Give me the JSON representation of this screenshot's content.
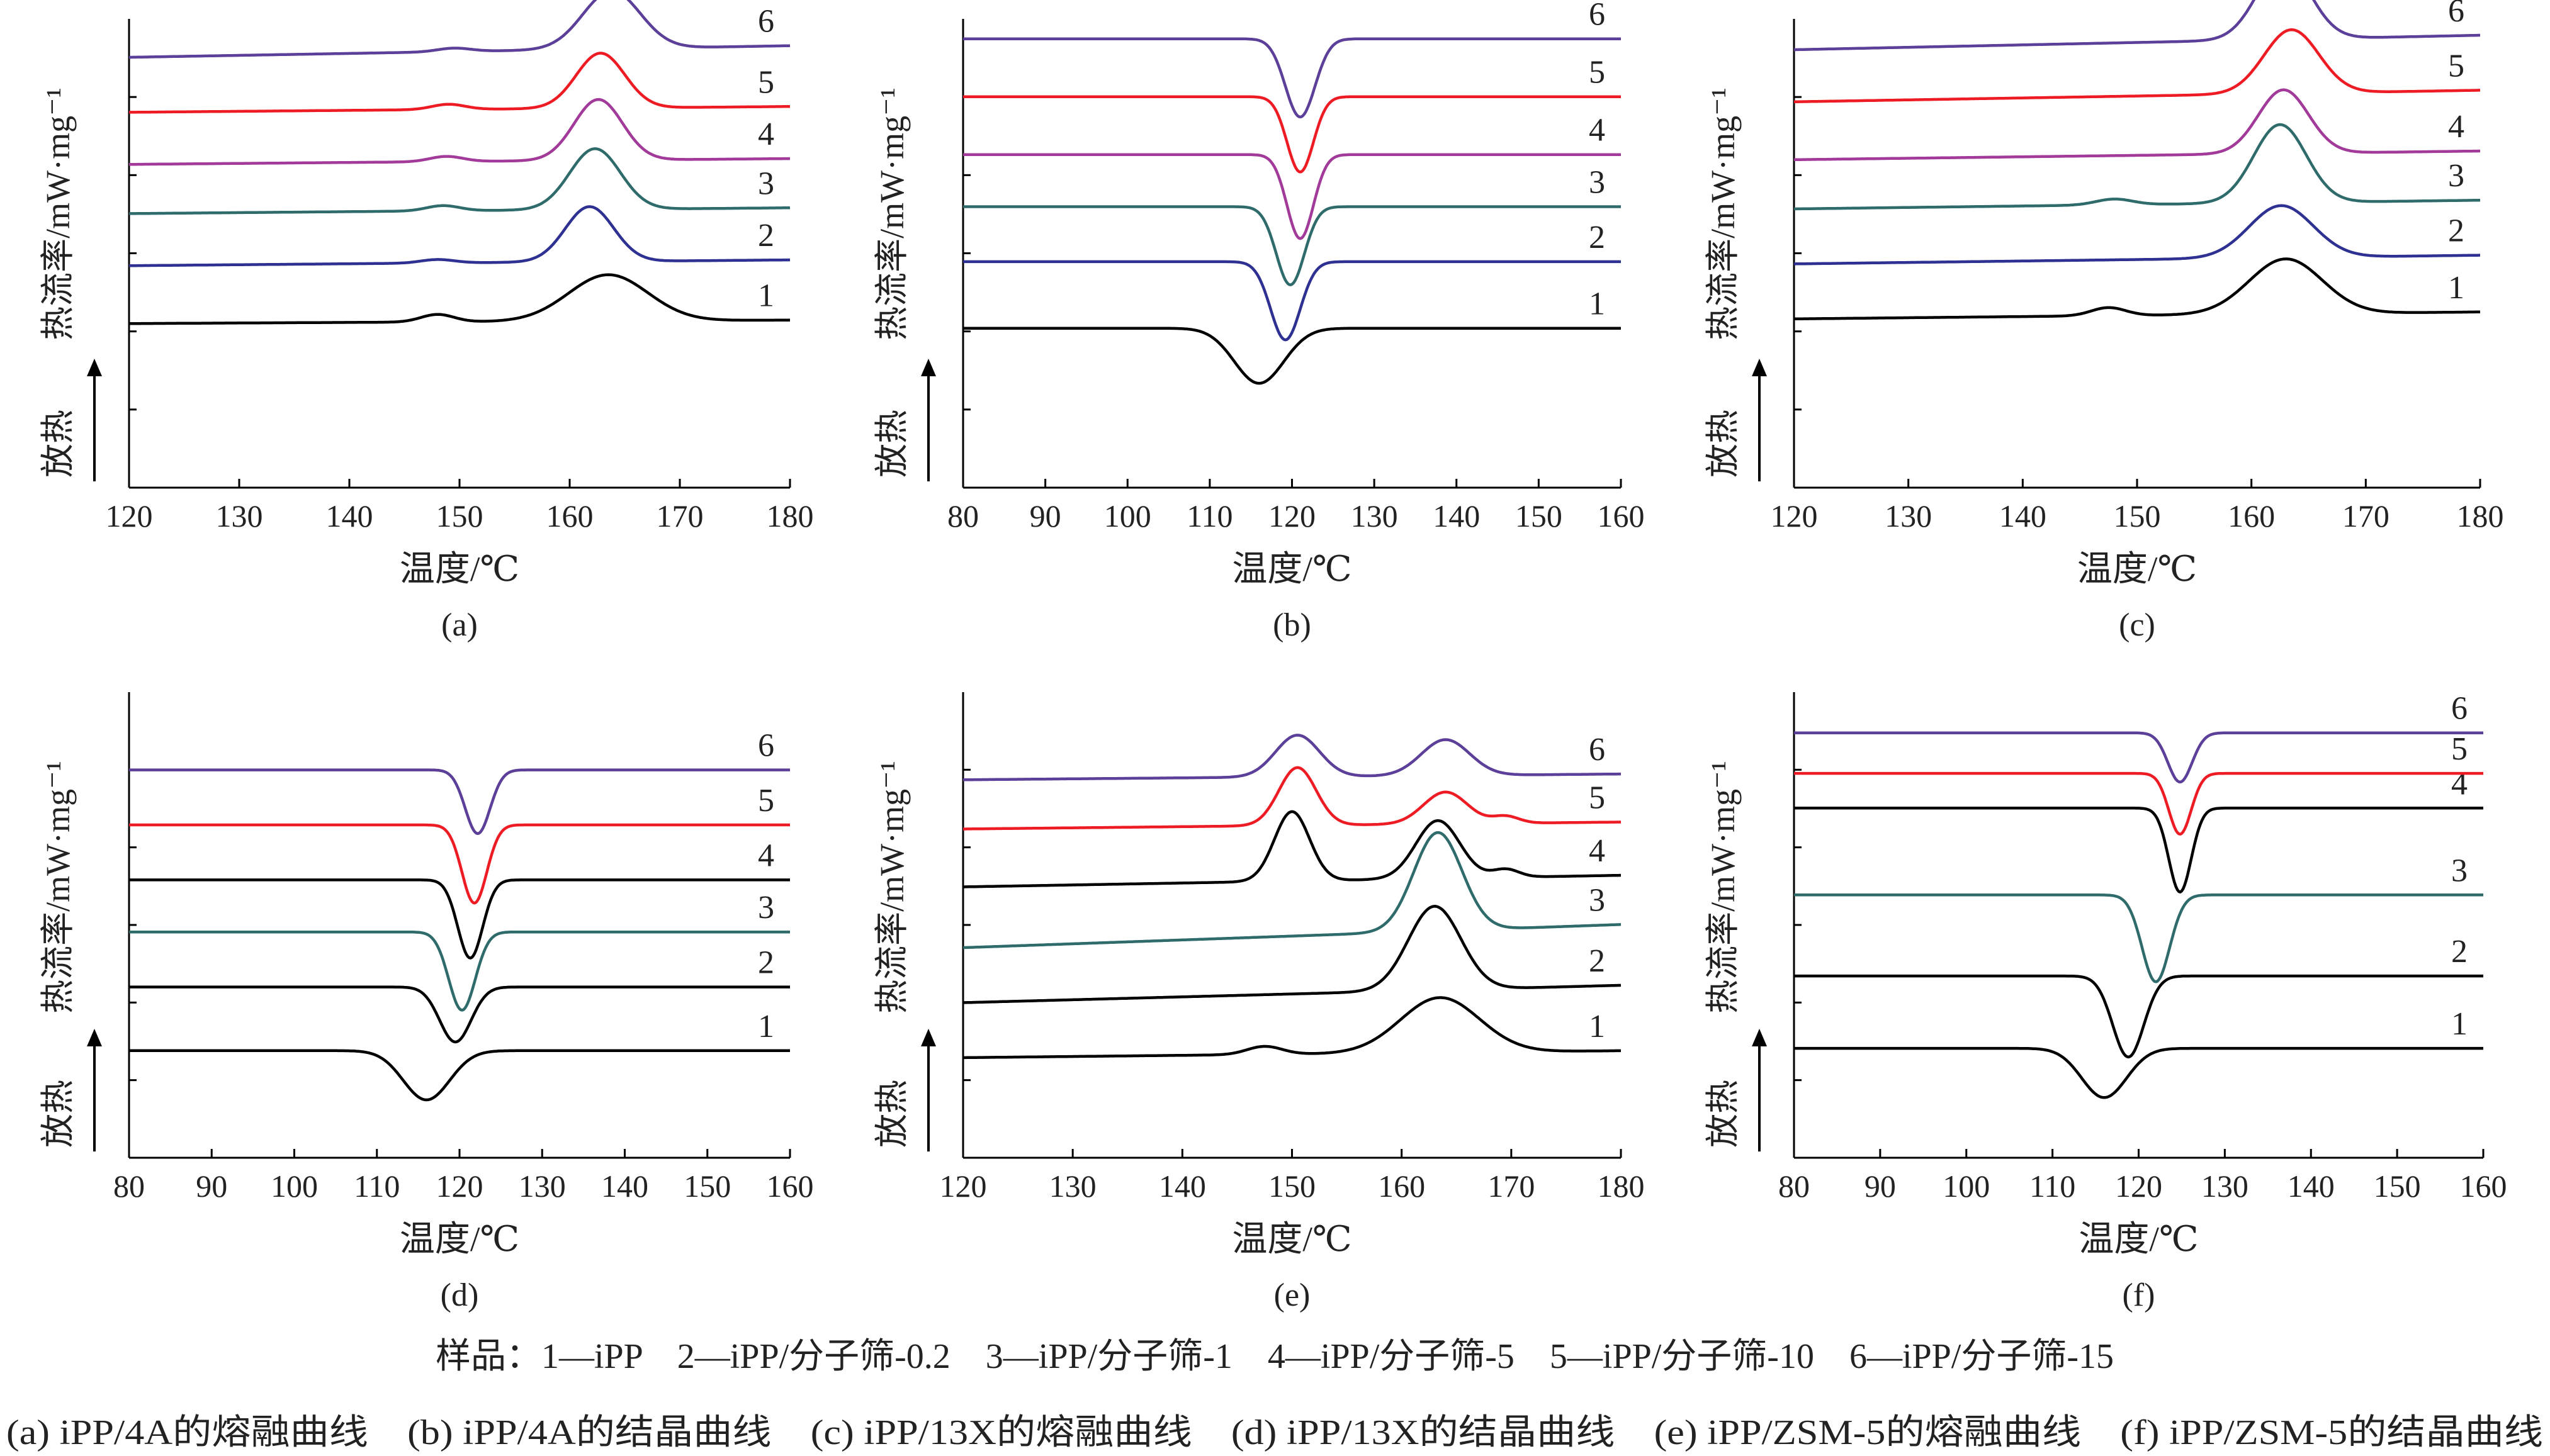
{
  "figure": {
    "sample_legend": "样品：1—iPP　2—iPP/分子筛-0.2　3—iPP/分子筛-1　4—iPP/分子筛-5　5—iPP/分子筛-10　6—iPP/分子筛-15",
    "caption": "(a) iPP/4A的熔融曲线　(b) iPP/4A的结晶曲线　(c) iPP/13X的熔融曲线　(d) iPP/13X的结晶曲线　(e) iPP/ZSM-5的熔融曲线　(f) iPP/ZSM-5的结晶曲线"
  },
  "chart_data": [
    {
      "panel": "(a)",
      "type": "line",
      "curve": "melting",
      "xlabel": "温度/℃",
      "ylabel": "热流率/mW·mg⁻¹",
      "direction_label": "放热",
      "xlim": [
        120,
        180
      ],
      "xticks": [
        120,
        130,
        140,
        150,
        160,
        170,
        180
      ],
      "series": [
        {
          "name": "1",
          "color": "#000000",
          "baseline": 0.0,
          "slope": 0.06,
          "peaks": [
            {
              "type": "up",
              "t": 163.5,
              "h": 0.8,
              "w": 3.6
            },
            {
              "type": "up",
              "t": 148.0,
              "h": 0.13,
              "w": 1.5
            }
          ]
        },
        {
          "name": "2",
          "color": "#2E3192",
          "baseline": 1.0,
          "slope": 0.1,
          "peaks": [
            {
              "type": "up",
              "t": 161.8,
              "h": 0.95,
              "w": 2.2
            },
            {
              "type": "up",
              "t": 148.0,
              "h": 0.06,
              "w": 1.5
            }
          ]
        },
        {
          "name": "3",
          "color": "#2F6B6B",
          "baseline": 1.9,
          "slope": 0.1,
          "peaks": [
            {
              "type": "up",
              "t": 162.3,
              "h": 1.05,
              "w": 2.3
            },
            {
              "type": "up",
              "t": 148.5,
              "h": 0.09,
              "w": 1.5
            }
          ]
        },
        {
          "name": "4",
          "color": "#A23A99",
          "baseline": 2.75,
          "slope": 0.1,
          "peaks": [
            {
              "type": "up",
              "t": 162.6,
              "h": 1.05,
              "w": 2.2
            },
            {
              "type": "up",
              "t": 148.8,
              "h": 0.09,
              "w": 1.5
            }
          ]
        },
        {
          "name": "5",
          "color": "#ED1C24",
          "baseline": 3.65,
          "slope": 0.1,
          "peaks": [
            {
              "type": "up",
              "t": 162.8,
              "h": 0.95,
              "w": 2.2
            },
            {
              "type": "up",
              "t": 149.0,
              "h": 0.09,
              "w": 1.5
            }
          ]
        },
        {
          "name": "6",
          "color": "#5B3F99",
          "baseline": 4.6,
          "slope": 0.2,
          "peaks": [
            {
              "type": "up",
              "t": 163.8,
              "h": 1.0,
              "w": 2.6
            },
            {
              "type": "up",
              "t": 149.5,
              "h": 0.06,
              "w": 1.5
            }
          ]
        }
      ]
    },
    {
      "panel": "(b)",
      "type": "line",
      "curve": "crystallization",
      "xlabel": "温度/℃",
      "ylabel": "热流率/mW·mg⁻¹",
      "direction_label": "放热",
      "xlim": [
        80,
        160
      ],
      "xticks": [
        80,
        90,
        100,
        110,
        120,
        130,
        140,
        150,
        160
      ],
      "series": [
        {
          "name": "1",
          "color": "#000000",
          "baseline": 0.0,
          "slope": 0.0,
          "peaks": [
            {
              "type": "down",
              "t": 116.0,
              "h": 0.95,
              "w": 3.0
            }
          ]
        },
        {
          "name": "2",
          "color": "#2E3192",
          "baseline": 1.15,
          "slope": 0.0,
          "peaks": [
            {
              "type": "down",
              "t": 119.2,
              "h": 1.35,
              "w": 1.8
            }
          ]
        },
        {
          "name": "3",
          "color": "#2F6B6B",
          "baseline": 2.1,
          "slope": 0.0,
          "peaks": [
            {
              "type": "down",
              "t": 119.8,
              "h": 1.35,
              "w": 1.7
            }
          ]
        },
        {
          "name": "4",
          "color": "#A23A99",
          "baseline": 3.0,
          "slope": 0.0,
          "peaks": [
            {
              "type": "down",
              "t": 121.0,
              "h": 1.45,
              "w": 1.6
            }
          ]
        },
        {
          "name": "5",
          "color": "#ED1C24",
          "baseline": 4.0,
          "slope": 0.0,
          "peaks": [
            {
              "type": "down",
              "t": 121.0,
              "h": 1.3,
              "w": 1.6
            }
          ]
        },
        {
          "name": "6",
          "color": "#5B3F99",
          "baseline": 5.0,
          "slope": 0.0,
          "peaks": [
            {
              "type": "down",
              "t": 121.0,
              "h": 1.35,
              "w": 1.8
            }
          ]
        }
      ]
    },
    {
      "panel": "(c)",
      "type": "line",
      "curve": "melting",
      "xlabel": "温度/℃",
      "ylabel": "热流率/mW·mg⁻¹",
      "direction_label": "放热",
      "xlim": [
        120,
        180
      ],
      "xticks": [
        120,
        130,
        140,
        150,
        160,
        170,
        180
      ],
      "series": [
        {
          "name": "1",
          "color": "#000000",
          "baseline": 0.0,
          "slope": 0.12,
          "peaks": [
            {
              "type": "up",
              "t": 163.0,
              "h": 0.95,
              "w": 3.2
            },
            {
              "type": "up",
              "t": 147.5,
              "h": 0.14,
              "w": 1.5
            }
          ]
        },
        {
          "name": "2",
          "color": "#2E3192",
          "baseline": 0.95,
          "slope": 0.15,
          "peaks": [
            {
              "type": "up",
              "t": 162.6,
              "h": 0.9,
              "w": 2.8
            }
          ]
        },
        {
          "name": "3",
          "color": "#2F6B6B",
          "baseline": 1.9,
          "slope": 0.15,
          "peaks": [
            {
              "type": "up",
              "t": 162.5,
              "h": 1.35,
              "w": 2.3
            },
            {
              "type": "up",
              "t": 148.0,
              "h": 0.1,
              "w": 1.6
            }
          ]
        },
        {
          "name": "4",
          "color": "#A23A99",
          "baseline": 2.75,
          "slope": 0.15,
          "peaks": [
            {
              "type": "up",
              "t": 162.8,
              "h": 1.1,
              "w": 2.2
            }
          ]
        },
        {
          "name": "5",
          "color": "#ED1C24",
          "baseline": 3.75,
          "slope": 0.2,
          "peaks": [
            {
              "type": "up",
              "t": 163.5,
              "h": 1.1,
              "w": 2.4
            }
          ]
        },
        {
          "name": "6",
          "color": "#5B3F99",
          "baseline": 4.65,
          "slope": 0.25,
          "peaks": [
            {
              "type": "up",
              "t": 162.8,
              "h": 1.3,
              "w": 2.3
            }
          ]
        }
      ]
    },
    {
      "panel": "(d)",
      "type": "line",
      "curve": "crystallization",
      "xlabel": "温度/℃",
      "ylabel": "热流率/mW·mg⁻¹",
      "direction_label": "放热",
      "xlim": [
        80,
        160
      ],
      "xticks": [
        80,
        90,
        100,
        110,
        120,
        130,
        140,
        150,
        160
      ],
      "series": [
        {
          "name": "1",
          "color": "#000000",
          "baseline": 0.0,
          "slope": 0.0,
          "peaks": [
            {
              "type": "down",
              "t": 116.0,
              "h": 0.85,
              "w": 2.8
            }
          ]
        },
        {
          "name": "2",
          "color": "#000000",
          "baseline": 1.1,
          "slope": 0.0,
          "peaks": [
            {
              "type": "down",
              "t": 119.5,
              "h": 0.95,
              "w": 1.9
            }
          ]
        },
        {
          "name": "3",
          "color": "#2F6B6B",
          "baseline": 2.05,
          "slope": 0.0,
          "peaks": [
            {
              "type": "down",
              "t": 120.3,
              "h": 1.35,
              "w": 1.6
            }
          ]
        },
        {
          "name": "4",
          "color": "#000000",
          "baseline": 2.95,
          "slope": 0.0,
          "peaks": [
            {
              "type": "down",
              "t": 121.3,
              "h": 1.35,
              "w": 1.5
            }
          ]
        },
        {
          "name": "5",
          "color": "#ED1C24",
          "baseline": 3.9,
          "slope": 0.0,
          "peaks": [
            {
              "type": "down",
              "t": 121.8,
              "h": 1.35,
              "w": 1.5
            }
          ]
        },
        {
          "name": "6",
          "color": "#5B3F99",
          "baseline": 4.85,
          "slope": 0.0,
          "peaks": [
            {
              "type": "down",
              "t": 122.2,
              "h": 1.1,
              "w": 1.5
            }
          ]
        }
      ]
    },
    {
      "panel": "(e)",
      "type": "line",
      "curve": "melting",
      "xlabel": "温度/℃",
      "ylabel": "热流率/mW·mg⁻¹",
      "direction_label": "放热",
      "xlim": [
        120,
        180
      ],
      "xticks": [
        120,
        130,
        140,
        150,
        160,
        170,
        180
      ],
      "series": [
        {
          "name": "1",
          "color": "#000000",
          "baseline": 0.0,
          "slope": 0.12,
          "peaks": [
            {
              "type": "up",
              "t": 163.5,
              "h": 0.95,
              "w": 3.6
            },
            {
              "type": "up",
              "t": 147.5,
              "h": 0.14,
              "w": 1.6
            }
          ]
        },
        {
          "name": "2",
          "color": "#000000",
          "baseline": 0.95,
          "slope": 0.3,
          "peaks": [
            {
              "type": "up",
              "t": 163.0,
              "h": 1.45,
              "w": 2.4
            }
          ]
        },
        {
          "name": "3",
          "color": "#2F6B6B",
          "baseline": 1.9,
          "slope": 0.4,
          "peaks": [
            {
              "type": "up",
              "t": 163.3,
              "h": 1.7,
              "w": 2.2
            }
          ]
        },
        {
          "name": "4",
          "color": "#000000",
          "baseline": 2.95,
          "slope": 0.2,
          "peaks": [
            {
              "type": "up",
              "t": 150.0,
              "h": 1.2,
              "w": 1.6
            },
            {
              "type": "up",
              "t": 163.3,
              "h": 1.0,
              "w": 2.0
            },
            {
              "type": "up",
              "t": 169.5,
              "h": 0.14,
              "w": 1.2
            }
          ]
        },
        {
          "name": "5",
          "color": "#ED1C24",
          "baseline": 3.95,
          "slope": 0.12,
          "peaks": [
            {
              "type": "up",
              "t": 150.5,
              "h": 1.0,
              "w": 1.7
            },
            {
              "type": "up",
              "t": 164.0,
              "h": 0.55,
              "w": 2.0
            },
            {
              "type": "up",
              "t": 169.5,
              "h": 0.12,
              "w": 1.2
            }
          ]
        },
        {
          "name": "6",
          "color": "#5B3F99",
          "baseline": 4.8,
          "slope": 0.1,
          "peaks": [
            {
              "type": "up",
              "t": 150.5,
              "h": 0.72,
              "w": 2.0
            },
            {
              "type": "up",
              "t": 164.0,
              "h": 0.62,
              "w": 2.2
            }
          ]
        }
      ]
    },
    {
      "panel": "(f)",
      "type": "line",
      "curve": "crystallization",
      "xlabel": "温度/℃",
      "ylabel": "热流率/mW·mg⁻¹",
      "direction_label": "放热",
      "xlim": [
        80,
        160
      ],
      "xticks": [
        80,
        90,
        100,
        110,
        120,
        130,
        140,
        150,
        160
      ],
      "series": [
        {
          "name": "1",
          "color": "#000000",
          "baseline": 0.0,
          "slope": 0.0,
          "peaks": [
            {
              "type": "down",
              "t": 116.0,
              "h": 0.85,
              "w": 2.6
            }
          ]
        },
        {
          "name": "2",
          "color": "#000000",
          "baseline": 1.25,
          "slope": 0.0,
          "peaks": [
            {
              "type": "down",
              "t": 118.8,
              "h": 1.4,
              "w": 1.8
            }
          ]
        },
        {
          "name": "3",
          "color": "#2F6B6B",
          "baseline": 2.65,
          "slope": 0.0,
          "peaks": [
            {
              "type": "down",
              "t": 122.0,
              "h": 1.5,
              "w": 1.6
            }
          ]
        },
        {
          "name": "4",
          "color": "#000000",
          "baseline": 4.15,
          "slope": 0.0,
          "peaks": [
            {
              "type": "down",
              "t": 124.8,
              "h": 1.45,
              "w": 1.3
            }
          ]
        },
        {
          "name": "5",
          "color": "#ED1C24",
          "baseline": 4.75,
          "slope": 0.0,
          "peaks": [
            {
              "type": "down",
              "t": 124.8,
              "h": 1.05,
              "w": 1.3
            }
          ]
        },
        {
          "name": "6",
          "color": "#5B3F99",
          "baseline": 5.45,
          "slope": 0.0,
          "peaks": [
            {
              "type": "down",
              "t": 124.8,
              "h": 0.85,
              "w": 1.4
            }
          ]
        }
      ]
    }
  ]
}
